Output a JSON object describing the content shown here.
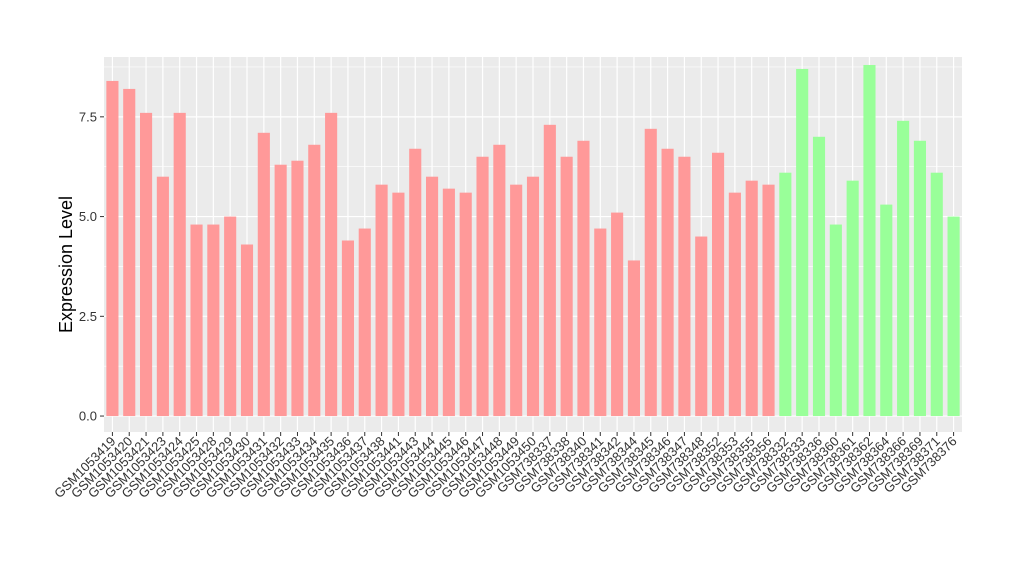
{
  "chart_data": {
    "type": "bar",
    "title": "",
    "xlabel": "",
    "ylabel": "Expression Level",
    "ylim": [
      -0.4,
      9.0
    ],
    "yticks": [
      0.0,
      2.5,
      5.0,
      7.5
    ],
    "ytick_labels": [
      "0.0",
      "2.5",
      "5.0",
      "7.5"
    ],
    "grid": true,
    "legend": "none",
    "colors": {
      "group_1": "#FF9999",
      "group_2": "#99FF99",
      "panel_bg": "#EBEBEB",
      "grid": "#FFFFFF"
    },
    "categories": [
      "GSM1053419",
      "GSM1053420",
      "GSM1053421",
      "GSM1053423",
      "GSM1053424",
      "GSM1053425",
      "GSM1053428",
      "GSM1053429",
      "GSM1053430",
      "GSM1053431",
      "GSM1053432",
      "GSM1053433",
      "GSM1053434",
      "GSM1053435",
      "GSM1053436",
      "GSM1053437",
      "GSM1053438",
      "GSM1053441",
      "GSM1053443",
      "GSM1053444",
      "GSM1053445",
      "GSM1053446",
      "GSM1053447",
      "GSM1053448",
      "GSM1053449",
      "GSM1053450",
      "GSM738337",
      "GSM738338",
      "GSM738340",
      "GSM738341",
      "GSM738342",
      "GSM738344",
      "GSM738345",
      "GSM738346",
      "GSM738347",
      "GSM738348",
      "GSM738352",
      "GSM738353",
      "GSM738355",
      "GSM738356",
      "GSM738332",
      "GSM738333",
      "GSM738336",
      "GSM738360",
      "GSM738361",
      "GSM738362",
      "GSM738364",
      "GSM738366",
      "GSM738369",
      "GSM738371",
      "GSM738376"
    ],
    "values": [
      8.4,
      8.2,
      7.6,
      6.0,
      7.6,
      4.8,
      4.8,
      5.0,
      4.3,
      7.1,
      6.3,
      6.4,
      6.8,
      7.6,
      4.4,
      4.7,
      5.8,
      5.6,
      6.7,
      6.0,
      5.7,
      5.6,
      6.5,
      6.8,
      5.8,
      6.0,
      7.3,
      6.5,
      6.9,
      4.7,
      5.1,
      3.9,
      7.2,
      6.7,
      6.5,
      4.5,
      6.6,
      5.6,
      5.9,
      5.8,
      6.1,
      8.7,
      7.0,
      4.8,
      5.9,
      8.8,
      5.3,
      7.4,
      6.9,
      6.1,
      5.0
    ],
    "groups": [
      1,
      1,
      1,
      1,
      1,
      1,
      1,
      1,
      1,
      1,
      1,
      1,
      1,
      1,
      1,
      1,
      1,
      1,
      1,
      1,
      1,
      1,
      1,
      1,
      1,
      1,
      1,
      1,
      1,
      1,
      1,
      1,
      1,
      1,
      1,
      1,
      1,
      1,
      1,
      1,
      2,
      2,
      2,
      2,
      2,
      2,
      2,
      2,
      2,
      2,
      2
    ]
  }
}
